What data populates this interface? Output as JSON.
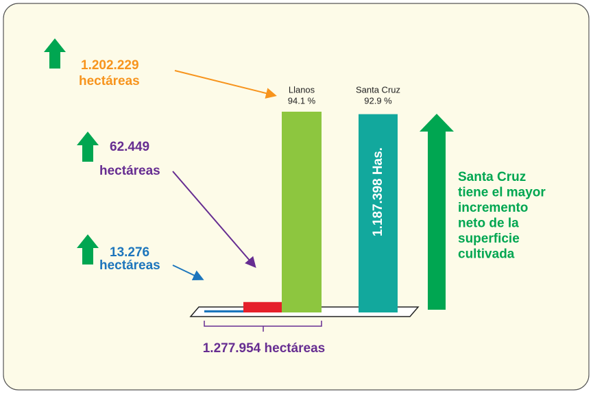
{
  "chart_data": {
    "type": "bar",
    "categories": [
      null,
      null,
      "Llanos",
      "Santa Cruz"
    ],
    "values": [
      13276,
      62449,
      1202229,
      1187398
    ],
    "value_labels": [
      "13.276",
      "62.449",
      "1.202.229",
      "1.187.398 Has."
    ],
    "unit_label": "hectáreas",
    "percent": [
      null,
      null,
      94.1,
      92.9
    ],
    "percent_labels": [
      null,
      null,
      "94.1 %",
      "92.9 %"
    ],
    "colors": [
      "#1b75bc",
      "#e5202a",
      "#8dc63f",
      "#12a89d"
    ],
    "label_colors": [
      "#1c75bc",
      "#662d91",
      "#f7941d",
      "#ffffff"
    ],
    "total": 1277954,
    "total_label": "1.277.954 hectáreas",
    "annotation": [
      "Santa Cruz",
      "tiene el mayor",
      "incremento",
      "neto de la",
      "superficie",
      "cultivada"
    ]
  }
}
